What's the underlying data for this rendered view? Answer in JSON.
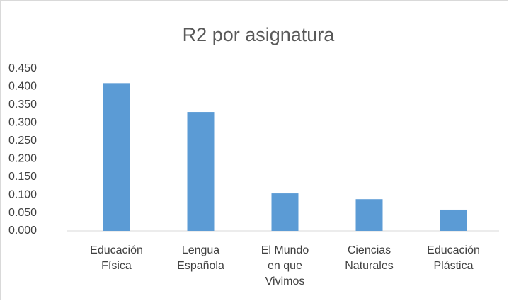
{
  "chart_data": {
    "type": "bar",
    "title": "R2 por asignatura",
    "categories": [
      "Educación Física",
      "Lengua Española",
      "El Mundo en que Vivimos",
      "Ciencias Naturales",
      "Educación Plástica"
    ],
    "values": [
      0.41,
      0.33,
      0.104,
      0.088,
      0.059
    ],
    "color": "#5b9bd5",
    "ylim": [
      0,
      0.45
    ],
    "yticks": [
      {
        "value": 0,
        "label": "0.000"
      },
      {
        "value": 0.05,
        "label": "0.050"
      },
      {
        "value": 0.1,
        "label": "0.100"
      },
      {
        "value": 0.15,
        "label": "0.150"
      },
      {
        "value": 0.2,
        "label": "0.200"
      },
      {
        "value": 0.25,
        "label": "0.250"
      },
      {
        "value": 0.3,
        "label": "0.300"
      },
      {
        "value": 0.35,
        "label": "0.350"
      },
      {
        "value": 0.4,
        "label": "0.400"
      },
      {
        "value": 0.45,
        "label": "0.450"
      }
    ],
    "grid": false
  }
}
